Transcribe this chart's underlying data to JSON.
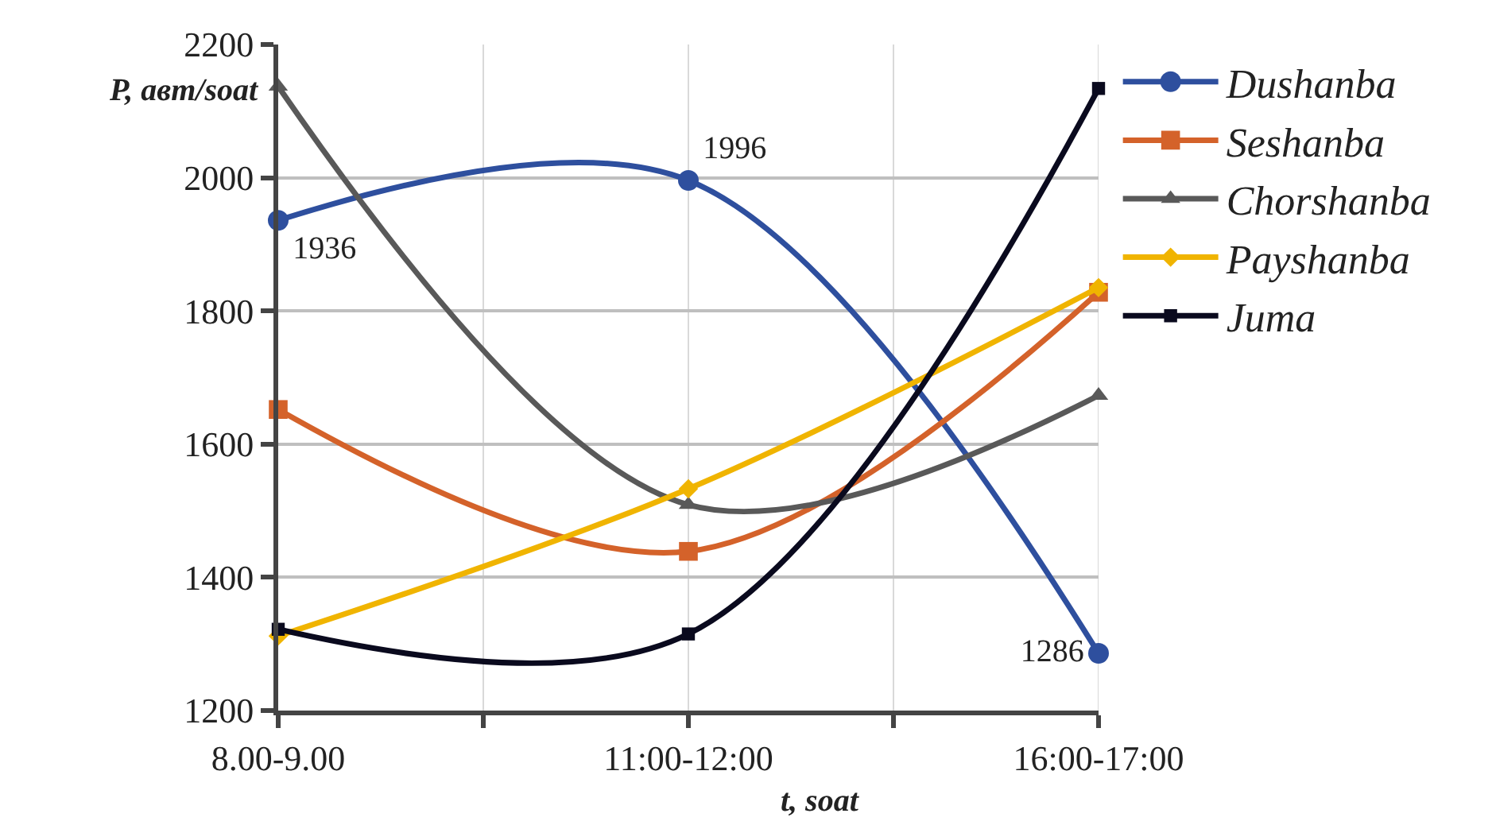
{
  "chart_data": {
    "type": "line",
    "categories": [
      "8.00-9.00",
      "11:00-12:00",
      "16:00-17:00"
    ],
    "ylabel": "P, авт/soat",
    "xlabel": "t, soat",
    "ylim": [
      1200,
      2200
    ],
    "yticks": [
      1200,
      1400,
      1600,
      1800,
      2000,
      2200
    ],
    "grid": true,
    "legend": "right",
    "line_style": "solid",
    "series": [
      {
        "name": "Dushanba",
        "color": "#2e4f9e",
        "marker": "circle",
        "values": [
          1936,
          1996,
          1286
        ],
        "value_labels": [
          "1936",
          "1996",
          "1286"
        ]
      },
      {
        "name": "Seshanba",
        "color": "#d4622a",
        "marker": "square",
        "values": [
          1652,
          1439,
          1828
        ]
      },
      {
        "name": "Chorshanba",
        "color": "#595959",
        "marker": "triangle",
        "values": [
          2137,
          1509,
          1673
        ]
      },
      {
        "name": "Payshanba",
        "color": "#f0b400",
        "marker": "diamond",
        "values": [
          1312,
          1533,
          1835
        ]
      },
      {
        "name": "Juma",
        "color": "#0a0a1e",
        "marker": "square",
        "values": [
          1322,
          1315,
          2134
        ]
      }
    ]
  }
}
